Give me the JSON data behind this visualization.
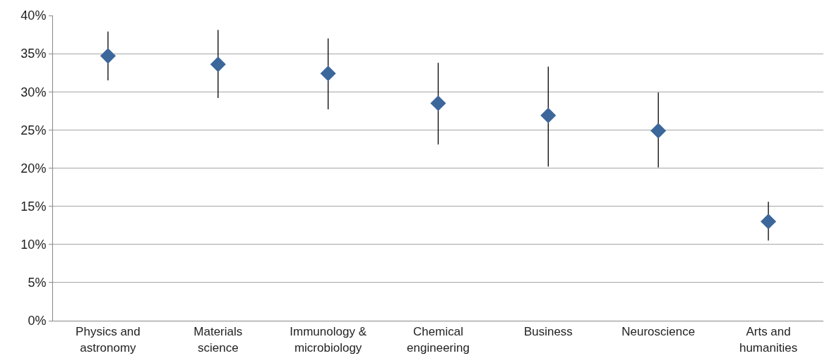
{
  "chart_data": {
    "type": "scatter",
    "categories": [
      "Physics and astronomy",
      "Materials science",
      "Immunology & microbiology",
      "Chemical engineering",
      "Business",
      "Neuroscience",
      "Arts and humanities"
    ],
    "values": [
      34.7,
      33.6,
      32.4,
      28.5,
      26.9,
      24.9,
      13.0
    ],
    "errors": [
      [
        31.5,
        37.9
      ],
      [
        29.2,
        38.1
      ],
      [
        27.7,
        37.0
      ],
      [
        23.1,
        33.8
      ],
      [
        20.2,
        33.3
      ],
      [
        20.1,
        29.9
      ],
      [
        10.5,
        15.6
      ]
    ],
    "color": "#3c679b",
    "marker": "diamond",
    "ylim": [
      0,
      40
    ],
    "yticks": [
      {
        "value": 0,
        "label": "0%"
      },
      {
        "value": 5,
        "label": "5%"
      },
      {
        "value": 10,
        "label": "10%"
      },
      {
        "value": 15,
        "label": "15%"
      },
      {
        "value": 20,
        "label": "20%"
      },
      {
        "value": 25,
        "label": "25%"
      },
      {
        "value": 30,
        "label": "30%"
      },
      {
        "value": 35,
        "label": "35%"
      },
      {
        "value": 40,
        "label": "40%"
      }
    ],
    "grid": "y"
  }
}
